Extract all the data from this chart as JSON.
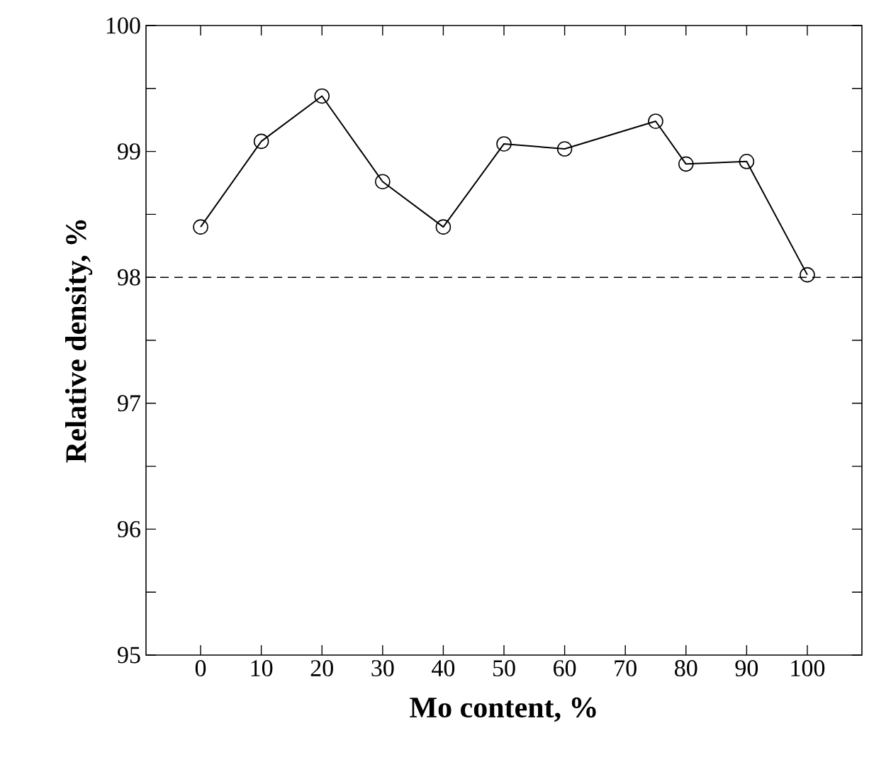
{
  "chart_data": {
    "type": "line",
    "xlabel": "Mo content, %",
    "ylabel": "Relative density, %",
    "x": [
      0,
      10,
      20,
      30,
      40,
      50,
      60,
      75,
      80,
      90,
      100
    ],
    "values": [
      98.4,
      99.08,
      99.44,
      98.76,
      98.4,
      99.06,
      99.02,
      99.24,
      98.9,
      98.92,
      98.02
    ],
    "color": "#000000",
    "marker": "circle",
    "line_style": "solid",
    "xlim": [
      -9,
      109
    ],
    "ylim": [
      95,
      100
    ],
    "xticks": [
      0,
      10,
      20,
      30,
      40,
      50,
      60,
      70,
      80,
      90,
      100
    ],
    "yticks": [
      95,
      {
        "value": 95.5,
        "label": null
      },
      96,
      {
        "value": 96.5,
        "label": null
      },
      97,
      {
        "value": 97.5,
        "label": null
      },
      98,
      {
        "value": 98.5,
        "label": null
      },
      99,
      {
        "value": 99.5,
        "label": null
      },
      100
    ],
    "ref_lines": [
      {
        "axis": "y",
        "value": 98,
        "line_style": "dashed",
        "color": "#000000"
      }
    ],
    "grid": false
  }
}
